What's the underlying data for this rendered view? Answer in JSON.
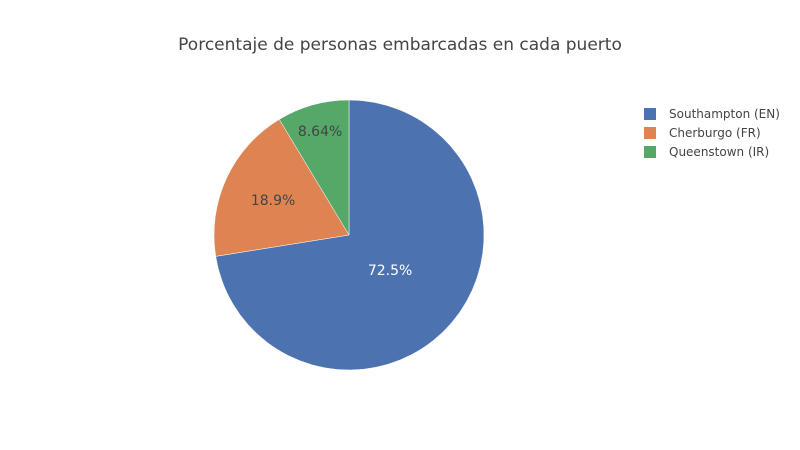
{
  "chart_data": {
    "type": "pie",
    "title": "Porcentaje de personas embarcadas en cada puerto",
    "slices": [
      {
        "label": "Southampton (EN)",
        "value": 72.5,
        "value_label": "72.5%",
        "color": "#4c72b0"
      },
      {
        "label": "Cherburgo (FR)",
        "value": 18.9,
        "value_label": "18.9%",
        "color": "#dd8452"
      },
      {
        "label": "Queenstown (IR)",
        "value": 8.64,
        "value_label": "8.64%",
        "color": "#55a868"
      }
    ],
    "legend_position": "top-right",
    "direction": "clockwise",
    "start": "top"
  }
}
